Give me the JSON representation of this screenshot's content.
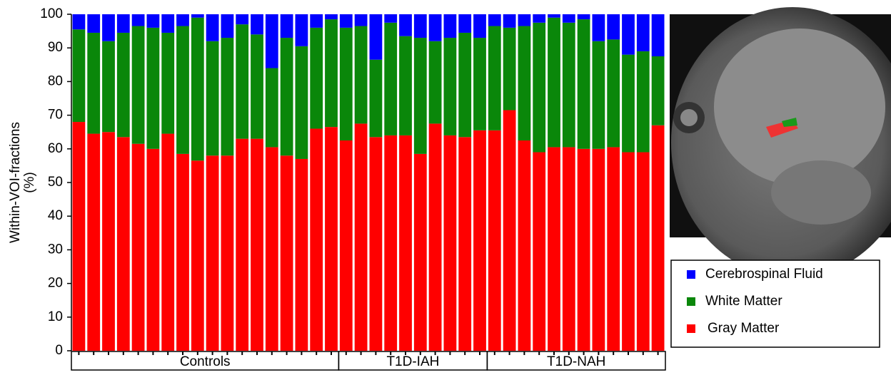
{
  "chart_data": {
    "type": "stacked-bar",
    "ylabel": [
      "Within-VOI-fractions",
      "(%)"
    ],
    "ylim": [
      0,
      100
    ],
    "yticks": [
      0,
      10,
      20,
      30,
      40,
      50,
      60,
      70,
      80,
      90,
      100
    ],
    "groups": [
      {
        "label": "Controls",
        "categories": [
          null,
          null,
          null,
          null,
          null,
          null,
          null,
          null,
          null,
          null,
          null,
          null,
          null,
          null,
          null,
          null,
          null,
          null
        ]
      },
      {
        "label": "T1D-IAH",
        "categories": [
          null,
          null,
          null,
          null,
          null,
          null,
          null,
          null,
          null,
          null
        ]
      },
      {
        "label": "T1D-NAH",
        "categories": [
          null,
          null,
          null,
          null,
          null,
          null,
          null,
          null,
          null,
          null,
          null,
          null
        ]
      }
    ],
    "series": [
      {
        "name": "Gray Matter",
        "color": "#ff0000",
        "values": [
          68,
          64.5,
          65,
          63.5,
          61.5,
          60,
          64.5,
          58.5,
          56.5,
          58,
          58,
          63,
          63,
          60.5,
          58,
          57,
          66,
          66.5,
          62.5,
          67.5,
          63.5,
          64,
          64,
          58.5,
          67.5,
          64,
          63.5,
          65.5,
          65.5,
          71.5,
          62.5,
          59,
          60.5,
          60.5,
          60,
          60,
          60.5,
          59,
          59,
          67
        ]
      },
      {
        "name": "White Matter",
        "color": "#0a870a",
        "values": [
          27.5,
          30,
          27,
          31,
          35,
          36,
          30,
          38,
          42.5,
          34,
          35,
          34,
          31,
          23.5,
          35,
          33.5,
          30,
          32,
          33.5,
          29,
          23,
          33.5,
          29.5,
          34.5,
          24.5,
          29,
          31,
          27.5,
          31,
          24.5,
          34,
          38.5,
          38.5,
          37,
          38.5,
          32,
          32,
          29,
          30,
          20.5
        ]
      },
      {
        "name": "Cerebrospinal Fluid",
        "color": "#0000ff",
        "values": [
          4.5,
          5.5,
          8,
          5.5,
          3.5,
          4,
          5.5,
          3.5,
          1,
          8,
          7,
          3,
          6,
          16,
          7,
          9.5,
          4,
          1.5,
          4,
          3.5,
          13.5,
          2.5,
          6.5,
          7,
          8,
          7,
          5.5,
          7,
          3.5,
          4,
          3.5,
          2.5,
          1,
          2.5,
          1.5,
          8,
          7.5,
          12,
          11,
          12.5
        ]
      }
    ]
  }
}
